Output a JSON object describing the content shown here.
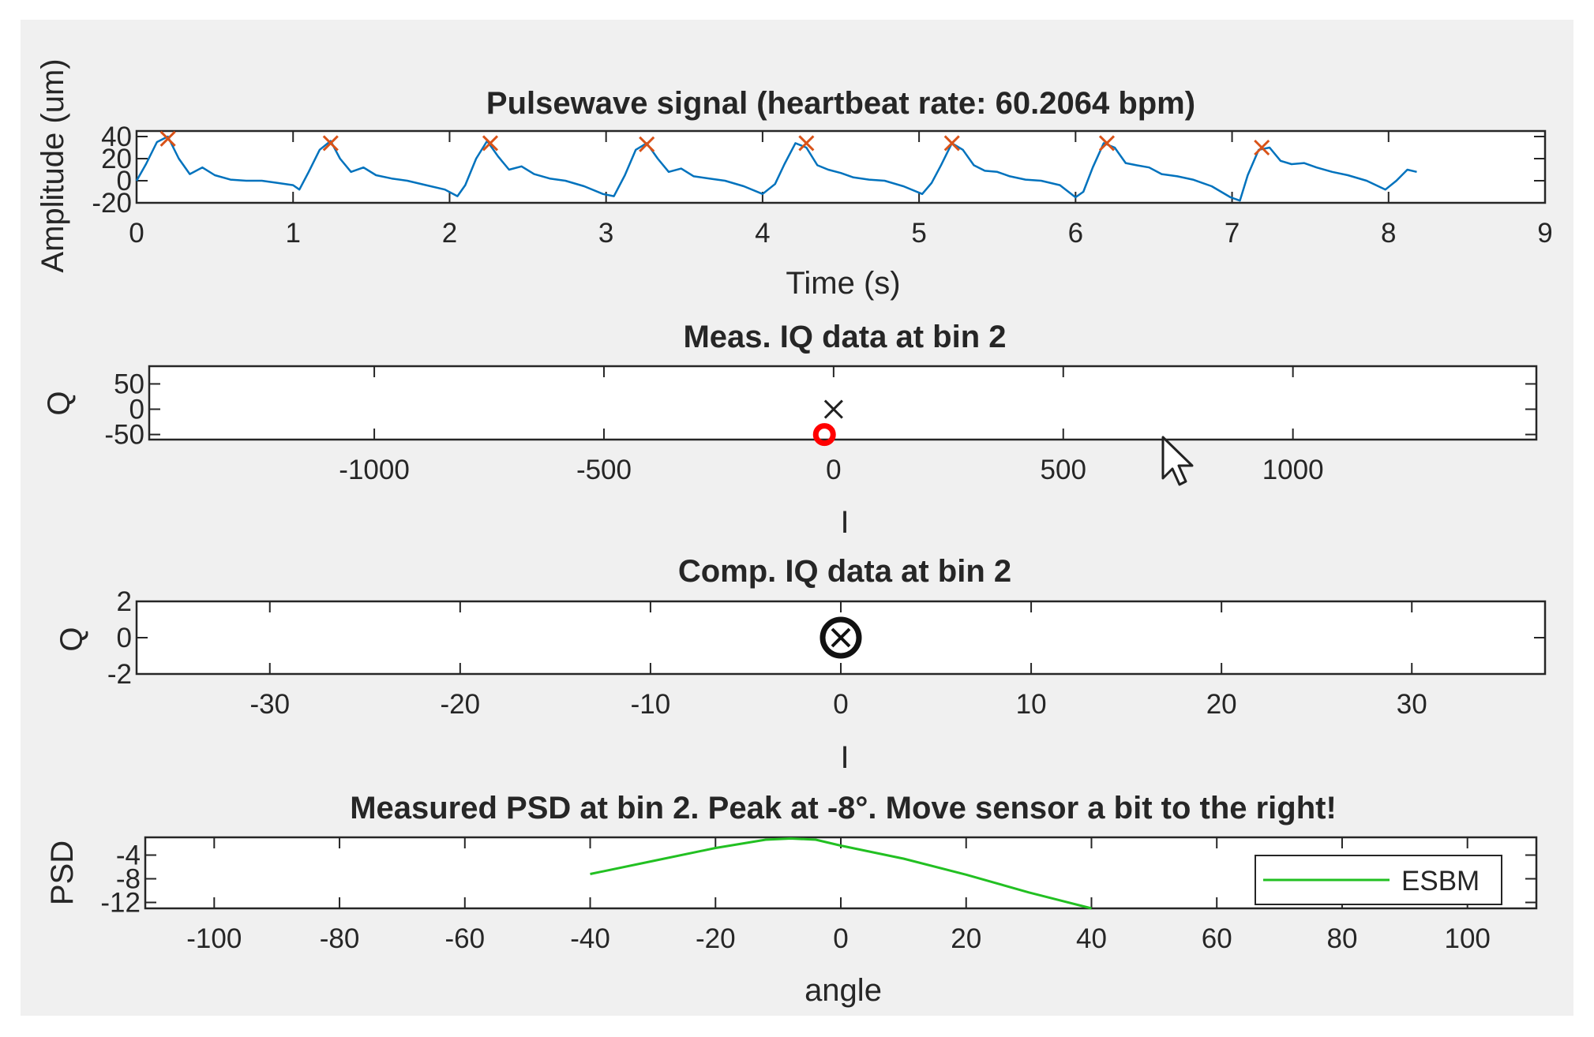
{
  "colors": {
    "figure_bg": "#f0f0f0",
    "axes_bg": "#ffffff",
    "signal": "#0072bd",
    "peaks": "#d95319",
    "psd": "#22c022",
    "meas_circle": "#ff0000",
    "text": "#262626"
  },
  "chart_data": [
    {
      "id": "pulsewave",
      "type": "line",
      "title": "Pulsewave signal (heartbeat rate: 60.2064 bpm)",
      "xlabel": "Time (s)",
      "ylabel": "Amplitude (um)",
      "xlim": [
        0,
        9
      ],
      "ylim": [
        -20,
        45
      ],
      "xticks": [
        0,
        1,
        2,
        3,
        4,
        5,
        6,
        7,
        8,
        9
      ],
      "yticks": [
        -20,
        0,
        20,
        40
      ],
      "ytick_labels": [
        "-20",
        "0",
        "20",
        "40"
      ],
      "series": [
        {
          "name": "signal",
          "x": [
            0.0,
            0.06,
            0.13,
            0.2,
            0.27,
            0.34,
            0.42,
            0.5,
            0.6,
            0.7,
            0.8,
            0.9,
            1.0,
            1.04,
            1.1,
            1.17,
            1.24,
            1.3,
            1.37,
            1.45,
            1.53,
            1.63,
            1.73,
            1.85,
            1.97,
            2.05,
            2.1,
            2.17,
            2.24,
            2.31,
            2.38,
            2.46,
            2.54,
            2.64,
            2.74,
            2.86,
            2.98,
            3.05,
            3.12,
            3.19,
            3.26,
            3.33,
            3.4,
            3.48,
            3.56,
            3.66,
            3.76,
            3.88,
            4.0,
            4.08,
            4.14,
            4.21,
            4.28,
            4.35,
            4.42,
            4.5,
            4.58,
            4.68,
            4.78,
            4.9,
            5.02,
            5.08,
            5.14,
            5.21,
            5.28,
            5.35,
            5.42,
            5.5,
            5.58,
            5.68,
            5.78,
            5.9,
            6.0,
            6.05,
            6.11,
            6.18,
            6.25,
            6.32,
            6.39,
            6.47,
            6.55,
            6.65,
            6.75,
            6.87,
            6.99,
            7.05,
            7.1,
            7.17,
            7.24,
            7.31,
            7.38,
            7.46,
            7.54,
            7.64,
            7.74,
            7.86,
            7.98,
            8.05,
            8.12,
            8.18
          ],
          "y": [
            0,
            15,
            35,
            40,
            20,
            6,
            12,
            5,
            1,
            0,
            0,
            -2,
            -4,
            -8,
            8,
            28,
            36,
            20,
            8,
            12,
            5,
            2,
            0,
            -4,
            -8,
            -14,
            -4,
            20,
            36,
            22,
            10,
            13,
            6,
            2,
            0,
            -5,
            -12,
            -14,
            5,
            28,
            34,
            20,
            8,
            11,
            4,
            2,
            0,
            -5,
            -12,
            -3,
            15,
            34,
            30,
            14,
            10,
            7,
            3,
            1,
            0,
            -5,
            -12,
            -2,
            14,
            34,
            28,
            14,
            9,
            8,
            4,
            1,
            0,
            -4,
            -15,
            -10,
            12,
            34,
            30,
            16,
            14,
            12,
            6,
            4,
            1,
            -5,
            -15,
            -18,
            5,
            28,
            30,
            18,
            15,
            16,
            12,
            8,
            5,
            0,
            -8,
            0,
            10,
            8
          ]
        },
        {
          "name": "peaks",
          "x": [
            0.2,
            1.24,
            2.26,
            3.26,
            4.28,
            5.21,
            6.2,
            7.19
          ],
          "y": [
            38,
            34,
            34,
            33,
            34,
            34,
            34,
            30
          ]
        }
      ]
    },
    {
      "id": "meas_iq",
      "type": "scatter",
      "title": "Meas. IQ data at bin 2",
      "xlabel": "I",
      "ylabel": "Q",
      "xlim": [
        -1490,
        1530
      ],
      "ylim": [
        -60,
        85
      ],
      "xticks": [
        -1000,
        -500,
        0,
        500,
        1000
      ],
      "yticks": [
        -50,
        0,
        50
      ],
      "points": [
        {
          "marker": "x",
          "x": 0,
          "y": 0
        },
        {
          "marker": "o",
          "x": -20,
          "y": -50
        }
      ]
    },
    {
      "id": "comp_iq",
      "type": "scatter",
      "title": "Comp. IQ data at bin 2",
      "xlabel": "I",
      "ylabel": "Q",
      "xlim": [
        -37,
        37
      ],
      "ylim": [
        -2,
        2
      ],
      "xticks": [
        -30,
        -20,
        -10,
        0,
        10,
        20,
        30
      ],
      "yticks": [
        -2,
        0,
        2
      ],
      "points": [
        {
          "marker": "x",
          "x": 0,
          "y": 0
        },
        {
          "marker": "o",
          "x": 0,
          "y": 0
        }
      ]
    },
    {
      "id": "psd",
      "type": "line",
      "title": "Measured PSD at bin 2. Peak at -8°. Move sensor a bit to the right!",
      "xlabel": "angle",
      "ylabel": "PSD",
      "xlim": [
        -111,
        111
      ],
      "ylim": [
        -13,
        -1
      ],
      "xticks": [
        -100,
        -80,
        -60,
        -40,
        -20,
        0,
        20,
        40,
        60,
        80,
        100
      ],
      "yticks": [
        -12,
        -8,
        -4
      ],
      "legend": {
        "entries": [
          "ESBM"
        ],
        "placement": "bottom-right"
      },
      "series": [
        {
          "name": "ESBM",
          "x": [
            -40,
            -30,
            -20,
            -12,
            -8,
            -4,
            0,
            10,
            20,
            30,
            40
          ],
          "y": [
            -7.2,
            -5.0,
            -2.8,
            -1.4,
            -1.2,
            -1.4,
            -2.4,
            -4.6,
            -7.3,
            -10.3,
            -13
          ]
        }
      ]
    }
  ]
}
